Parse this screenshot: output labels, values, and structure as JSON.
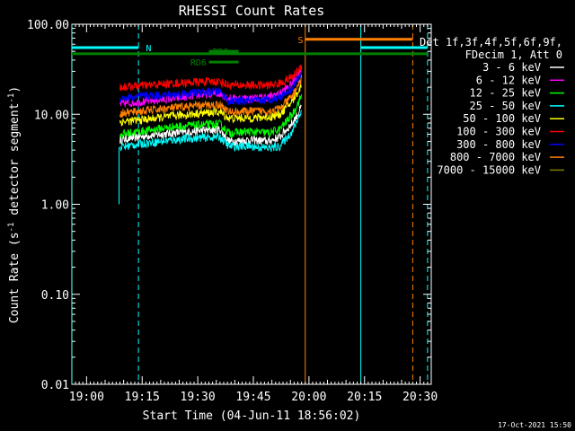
{
  "chart_data": {
    "type": "line",
    "title": "RHESSI Count Rates",
    "xlabel": "Start Time (04-Jun-11 18:56:02)",
    "ylabel_main": "Count Rate (s",
    "ylabel_sup1": "-1",
    "ylabel_mid": " detector segment",
    "ylabel_sup2": "-1",
    "ylabel_end": ")",
    "y_scale": "log",
    "ylim": [
      0.01,
      100
    ],
    "xlim": [
      "18:56:02",
      "20:33:00"
    ],
    "x_ticks": [
      {
        "label": "19:00",
        "minutes": 3.97
      },
      {
        "label": "19:15",
        "minutes": 18.97
      },
      {
        "label": "19:30",
        "minutes": 33.97
      },
      {
        "label": "19:45",
        "minutes": 48.97
      },
      {
        "label": "20:00",
        "minutes": 63.97
      },
      {
        "label": "20:15",
        "minutes": 78.97
      },
      {
        "label": "20:30",
        "minutes": 93.97
      }
    ],
    "y_ticks": [
      {
        "label": "100.00",
        "value": 100
      },
      {
        "label": "10.00",
        "value": 10
      },
      {
        "label": "1.00",
        "value": 1
      },
      {
        "label": "0.10",
        "value": 0.1
      },
      {
        "label": "0.01",
        "value": 0.01
      }
    ],
    "legend_header": [
      "Det 1f,3f,4f,5f,6f,9f,",
      "FDecim 1, Att 0"
    ],
    "legend_placement": "top-right outside plot",
    "series": [
      {
        "name": "3 - 6 keV",
        "color": "#ffffff",
        "x_start": "19:09",
        "x_end": "19:58",
        "values": [
          [
            0,
            5.2
          ],
          [
            0.15,
            5.8
          ],
          [
            0.3,
            6.2
          ],
          [
            0.45,
            6.6
          ],
          [
            0.55,
            6.8
          ],
          [
            0.6,
            5.0
          ],
          [
            0.72,
            5.2
          ],
          [
            0.82,
            5.0
          ],
          [
            0.88,
            5.6
          ],
          [
            0.95,
            8
          ],
          [
            1,
            12
          ]
        ]
      },
      {
        "name": "6 - 12 keV",
        "color": "#ff00ff",
        "x_start": "19:09",
        "x_end": "19:58",
        "values": [
          [
            0,
            13
          ],
          [
            0.15,
            14
          ],
          [
            0.3,
            15
          ],
          [
            0.45,
            16.5
          ],
          [
            0.55,
            17
          ],
          [
            0.6,
            15
          ],
          [
            0.72,
            15
          ],
          [
            0.82,
            15.5
          ],
          [
            0.88,
            17
          ],
          [
            0.95,
            22
          ],
          [
            1,
            33
          ]
        ]
      },
      {
        "name": "12 - 25 keV",
        "color": "#00ff00",
        "x_start": "19:09",
        "x_end": "19:58",
        "values": [
          [
            0,
            6.0
          ],
          [
            0.15,
            6.6
          ],
          [
            0.3,
            7.3
          ],
          [
            0.45,
            7.6
          ],
          [
            0.55,
            7.8
          ],
          [
            0.6,
            6.2
          ],
          [
            0.72,
            6.4
          ],
          [
            0.82,
            6.2
          ],
          [
            0.88,
            6.8
          ],
          [
            0.95,
            10
          ],
          [
            1,
            16
          ]
        ]
      },
      {
        "name": "25 - 50 keV",
        "color": "#00ffff",
        "x_start": "19:09",
        "x_end": "19:58",
        "values": [
          [
            0,
            4.3
          ],
          [
            0.15,
            4.8
          ],
          [
            0.3,
            5.2
          ],
          [
            0.45,
            5.5
          ],
          [
            0.55,
            5.6
          ],
          [
            0.6,
            4.4
          ],
          [
            0.72,
            4.4
          ],
          [
            0.82,
            4.2
          ],
          [
            0.88,
            4.4
          ],
          [
            0.95,
            6.5
          ],
          [
            1,
            11
          ]
        ]
      },
      {
        "name": "50 - 100 keV",
        "color": "#ffff00",
        "x_start": "19:09",
        "x_end": "19:58",
        "values": [
          [
            0,
            8.2
          ],
          [
            0.15,
            8.8
          ],
          [
            0.3,
            9.6
          ],
          [
            0.45,
            10.3
          ],
          [
            0.55,
            10.6
          ],
          [
            0.6,
            9.0
          ],
          [
            0.72,
            9.1
          ],
          [
            0.82,
            9.3
          ],
          [
            0.88,
            10
          ],
          [
            0.95,
            14
          ],
          [
            1,
            21
          ]
        ]
      },
      {
        "name": "100 - 300 keV",
        "color": "#ff0000",
        "x_start": "19:09",
        "x_end": "19:58",
        "values": [
          [
            0,
            20
          ],
          [
            0.15,
            21
          ],
          [
            0.3,
            22
          ],
          [
            0.45,
            23
          ],
          [
            0.55,
            23
          ],
          [
            0.6,
            21
          ],
          [
            0.72,
            21
          ],
          [
            0.82,
            21
          ],
          [
            0.88,
            22
          ],
          [
            0.95,
            26
          ],
          [
            1,
            34
          ]
        ]
      },
      {
        "name": "300 - 800 keV",
        "color": "#0000ff",
        "x_start": "19:09",
        "x_end": "19:58",
        "values": [
          [
            0,
            15
          ],
          [
            0.15,
            16
          ],
          [
            0.3,
            16.5
          ],
          [
            0.45,
            17.5
          ],
          [
            0.55,
            18
          ],
          [
            0.6,
            14
          ],
          [
            0.72,
            14
          ],
          [
            0.82,
            14.5
          ],
          [
            0.88,
            15.5
          ],
          [
            0.95,
            20
          ],
          [
            1,
            28
          ]
        ]
      },
      {
        "name": "800 - 7000 keV",
        "color": "#ff8000",
        "x_start": "19:09",
        "x_end": "19:58",
        "values": [
          [
            0,
            10.2
          ],
          [
            0.15,
            11
          ],
          [
            0.3,
            11.8
          ],
          [
            0.45,
            12.5
          ],
          [
            0.55,
            12.8
          ],
          [
            0.6,
            10.6
          ],
          [
            0.72,
            10.8
          ],
          [
            0.82,
            10.9
          ],
          [
            0.88,
            11.5
          ],
          [
            0.95,
            16
          ],
          [
            1,
            25
          ]
        ]
      },
      {
        "name": "7000 - 15000 keV",
        "color": "#808000",
        "x_start": "",
        "x_end": "",
        "values": []
      }
    ],
    "flags": [
      {
        "label": "N",
        "color": "#00ffff",
        "value": 55,
        "x_start": "18:56",
        "x_end": "19:14",
        "label_at": "19:16"
      },
      {
        "label": "",
        "color": "#00ffff",
        "value": 55,
        "x_start": "20:14",
        "x_end": "20:32",
        "label_at": ""
      },
      {
        "label": "S",
        "color": "#ff8000",
        "value": 68,
        "x_start": "19:59",
        "x_end": "20:28",
        "label_at": "19:57"
      },
      {
        "label": "",
        "color": "#008000",
        "value": 47,
        "x_start": "18:56",
        "x_end": "20:32",
        "label_at": ""
      },
      {
        "label": "RD6",
        "color": "#008000",
        "value": 38,
        "x_start": "19:33",
        "x_end": "19:41",
        "label_at": "19:28"
      },
      {
        "label": "RD0",
        "color": "#008000",
        "value": 50,
        "x_start": "19:33",
        "x_end": "19:41",
        "label_at": "19:34"
      }
    ],
    "vertical_lines": [
      {
        "x": "18:56",
        "color": "#00ffff",
        "dashed": false
      },
      {
        "x": "19:14",
        "color": "#00ffff",
        "dashed": true
      },
      {
        "x": "19:59",
        "color": "#ff8000",
        "dashed": false
      },
      {
        "x": "20:14",
        "color": "#00ffff",
        "dashed": false
      },
      {
        "x": "20:28",
        "color": "#ff8000",
        "dashed": true
      },
      {
        "x": "20:32",
        "color": "#00ffff",
        "dashed": true
      }
    ]
  },
  "footer_timestamp": "17-Oct-2021 15:50",
  "colors": {
    "background": "#000000",
    "axes": "#ffffff"
  }
}
